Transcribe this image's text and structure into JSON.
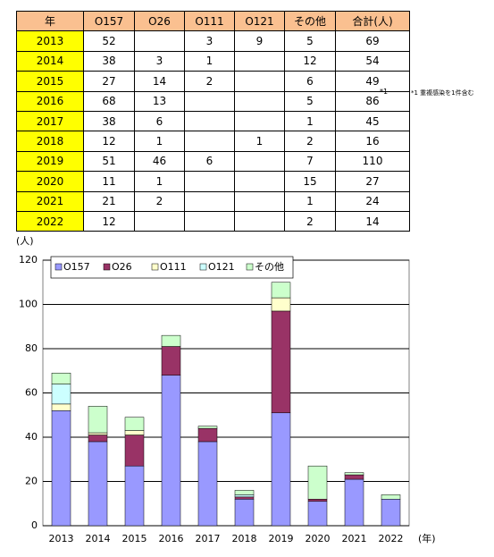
{
  "table": {
    "header": [
      "年",
      "O157",
      "O26",
      "O111",
      "O121",
      "その他",
      "合計(人)"
    ],
    "rows": [
      [
        "2013",
        "52",
        null,
        "3",
        "9",
        "5",
        "69"
      ],
      [
        "2014",
        "38",
        "3",
        "1",
        null,
        "12",
        "54"
      ],
      [
        "2015",
        "27",
        "14",
        "2",
        null,
        "6",
        "49"
      ],
      [
        "2016",
        "68",
        "13",
        null,
        null,
        "5",
        "86"
      ],
      [
        "2017",
        "38",
        "6",
        null,
        null,
        "1",
        "45"
      ],
      [
        "2018",
        "12",
        "1",
        null,
        "1",
        "2",
        "16"
      ],
      [
        "2019",
        "51",
        "46",
        "6",
        null,
        "7",
        "110"
      ],
      [
        "2020",
        "11",
        "1",
        null,
        null,
        "15",
        "27"
      ],
      [
        "2021",
        "21",
        "2",
        null,
        null,
        "1",
        "24"
      ],
      [
        "2022",
        "12",
        null,
        null,
        null,
        "2",
        "14"
      ]
    ],
    "footnote_mark": "*1",
    "footnote": "*1 重複感染を1件含む"
  },
  "chart_data": {
    "type": "stacked_bar",
    "y_label": "(人)",
    "x_label": "(年)",
    "categories": [
      "2013",
      "2014",
      "2015",
      "2016",
      "2017",
      "2018",
      "2019",
      "2020",
      "2021",
      "2022"
    ],
    "series": [
      {
        "name": "O157",
        "color": "#9999ff",
        "values": [
          52,
          38,
          27,
          68,
          38,
          12,
          51,
          11,
          21,
          12
        ]
      },
      {
        "name": "O26",
        "color": "#993366",
        "values": [
          0,
          3,
          14,
          13,
          6,
          1,
          46,
          1,
          2,
          0
        ]
      },
      {
        "name": "O111",
        "color": "#ffffcc",
        "values": [
          3,
          1,
          2,
          0,
          0,
          0,
          6,
          0,
          0,
          0
        ]
      },
      {
        "name": "O121",
        "color": "#ccffff",
        "values": [
          9,
          0,
          0,
          0,
          0,
          1,
          0,
          0,
          0,
          0
        ]
      },
      {
        "name": "その他",
        "color": "#ccffcc",
        "values": [
          5,
          12,
          6,
          5,
          1,
          2,
          7,
          15,
          1,
          2
        ]
      }
    ],
    "ylim": [
      0,
      120
    ],
    "yticks": [
      0,
      20,
      40,
      60,
      80,
      100,
      120
    ],
    "grid": true,
    "legend": "top-left"
  }
}
